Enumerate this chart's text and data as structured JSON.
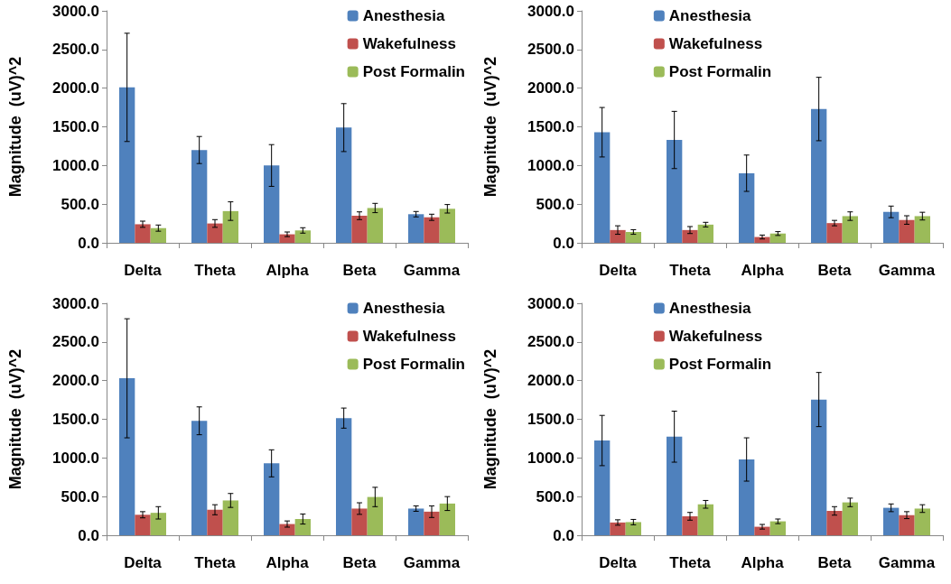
{
  "chart_data": [
    {
      "type": "bar",
      "categories": [
        "Delta",
        "Theta",
        "Alpha",
        "Beta",
        "Gamma"
      ],
      "ylabel": "Magnitude  (uV)^2",
      "ylim": [
        0,
        3000
      ],
      "yticks": [
        {
          "value": 0,
          "label": "0.0"
        },
        {
          "value": 500,
          "label": "500.0"
        },
        {
          "value": 1000,
          "label": "1000.0"
        },
        {
          "value": 1500,
          "label": "1500.0"
        },
        {
          "value": 2000,
          "label": "2000.0"
        },
        {
          "value": 2500,
          "label": "2500.0"
        },
        {
          "value": 3000,
          "label": "3000.0"
        }
      ],
      "grid": false,
      "legend": "top right",
      "series": [
        {
          "name": "Anesthesia",
          "color": "#4f81bd",
          "values": [
            2010,
            1200,
            1000,
            1490,
            370
          ],
          "errors": [
            700,
            175,
            270,
            310,
            35
          ]
        },
        {
          "name": "Wakefulness",
          "color": "#c0504d",
          "values": [
            240,
            250,
            110,
            350,
            330
          ],
          "errors": [
            40,
            50,
            30,
            50,
            40
          ]
        },
        {
          "name": "Post Formalin",
          "color": "#9bbb59",
          "values": [
            190,
            410,
            160,
            450,
            440
          ],
          "errors": [
            40,
            120,
            35,
            60,
            55
          ]
        }
      ]
    },
    {
      "type": "bar",
      "categories": [
        "Delta",
        "Theta",
        "Alpha",
        "Beta",
        "Gamma"
      ],
      "ylabel": "Magnitude  (uV)^2",
      "ylim": [
        0,
        3000
      ],
      "yticks": [
        {
          "value": 0,
          "label": "0.0"
        },
        {
          "value": 500,
          "label": "500.0"
        },
        {
          "value": 1000,
          "label": "1000.0"
        },
        {
          "value": 1500,
          "label": "1500.0"
        },
        {
          "value": 2000,
          "label": "2000.0"
        },
        {
          "value": 2500,
          "label": "2500.0"
        },
        {
          "value": 3000,
          "label": "3000.0"
        }
      ],
      "grid": false,
      "legend": "top",
      "series": [
        {
          "name": "Anesthesia",
          "color": "#4f81bd",
          "values": [
            1430,
            1330,
            900,
            1730,
            400
          ],
          "errors": [
            320,
            370,
            235,
            410,
            75
          ]
        },
        {
          "name": "Wakefulness",
          "color": "#c0504d",
          "values": [
            165,
            165,
            75,
            255,
            295
          ],
          "errors": [
            55,
            45,
            25,
            35,
            55
          ]
        },
        {
          "name": "Post Formalin",
          "color": "#9bbb59",
          "values": [
            140,
            235,
            120,
            345,
            345
          ],
          "errors": [
            30,
            30,
            25,
            55,
            50
          ]
        }
      ]
    },
    {
      "type": "bar",
      "categories": [
        "Delta",
        "Theta",
        "Alpha",
        "Beta",
        "Gamma"
      ],
      "ylabel": "Magnitude  (uV)^2",
      "ylim": [
        0,
        3000
      ],
      "yticks": [
        {
          "value": 0,
          "label": "0.0"
        },
        {
          "value": 500,
          "label": "500.0"
        },
        {
          "value": 1000,
          "label": "1000.0"
        },
        {
          "value": 1500,
          "label": "1500.0"
        },
        {
          "value": 2000,
          "label": "2000.0"
        },
        {
          "value": 2500,
          "label": "2500.0"
        },
        {
          "value": 3000,
          "label": "3000.0"
        }
      ],
      "grid": false,
      "legend": "top right",
      "series": [
        {
          "name": "Anesthesia",
          "color": "#4f81bd",
          "values": [
            2030,
            1480,
            930,
            1515,
            345
          ],
          "errors": [
            770,
            180,
            175,
            130,
            35
          ]
        },
        {
          "name": "Wakefulness",
          "color": "#c0504d",
          "values": [
            265,
            330,
            145,
            345,
            305
          ],
          "errors": [
            40,
            65,
            40,
            75,
            75
          ]
        },
        {
          "name": "Post Formalin",
          "color": "#9bbb59",
          "values": [
            290,
            450,
            210,
            495,
            410
          ],
          "errors": [
            80,
            90,
            65,
            125,
            90
          ]
        }
      ]
    },
    {
      "type": "bar",
      "categories": [
        "Delta",
        "Theta",
        "Alpha",
        "Beta",
        "Gamma"
      ],
      "ylabel": "Magnitude  (uV)^2",
      "ylim": [
        0,
        3000
      ],
      "yticks": [
        {
          "value": 0,
          "label": "0.0"
        },
        {
          "value": 500,
          "label": "500.0"
        },
        {
          "value": 1000,
          "label": "1000.0"
        },
        {
          "value": 1500,
          "label": "1500.0"
        },
        {
          "value": 2000,
          "label": "2000.0"
        },
        {
          "value": 2500,
          "label": "2500.0"
        },
        {
          "value": 3000,
          "label": "3000.0"
        }
      ],
      "grid": false,
      "legend": "top",
      "series": [
        {
          "name": "Anesthesia",
          "color": "#4f81bd",
          "values": [
            1225,
            1275,
            980,
            1755,
            355
          ],
          "errors": [
            325,
            330,
            280,
            350,
            50
          ]
        },
        {
          "name": "Wakefulness",
          "color": "#c0504d",
          "values": [
            165,
            245,
            110,
            315,
            260
          ],
          "errors": [
            35,
            50,
            30,
            55,
            45
          ]
        },
        {
          "name": "Post Formalin",
          "color": "#9bbb59",
          "values": [
            170,
            400,
            180,
            425,
            345
          ],
          "errors": [
            35,
            50,
            30,
            55,
            50
          ]
        }
      ]
    }
  ]
}
